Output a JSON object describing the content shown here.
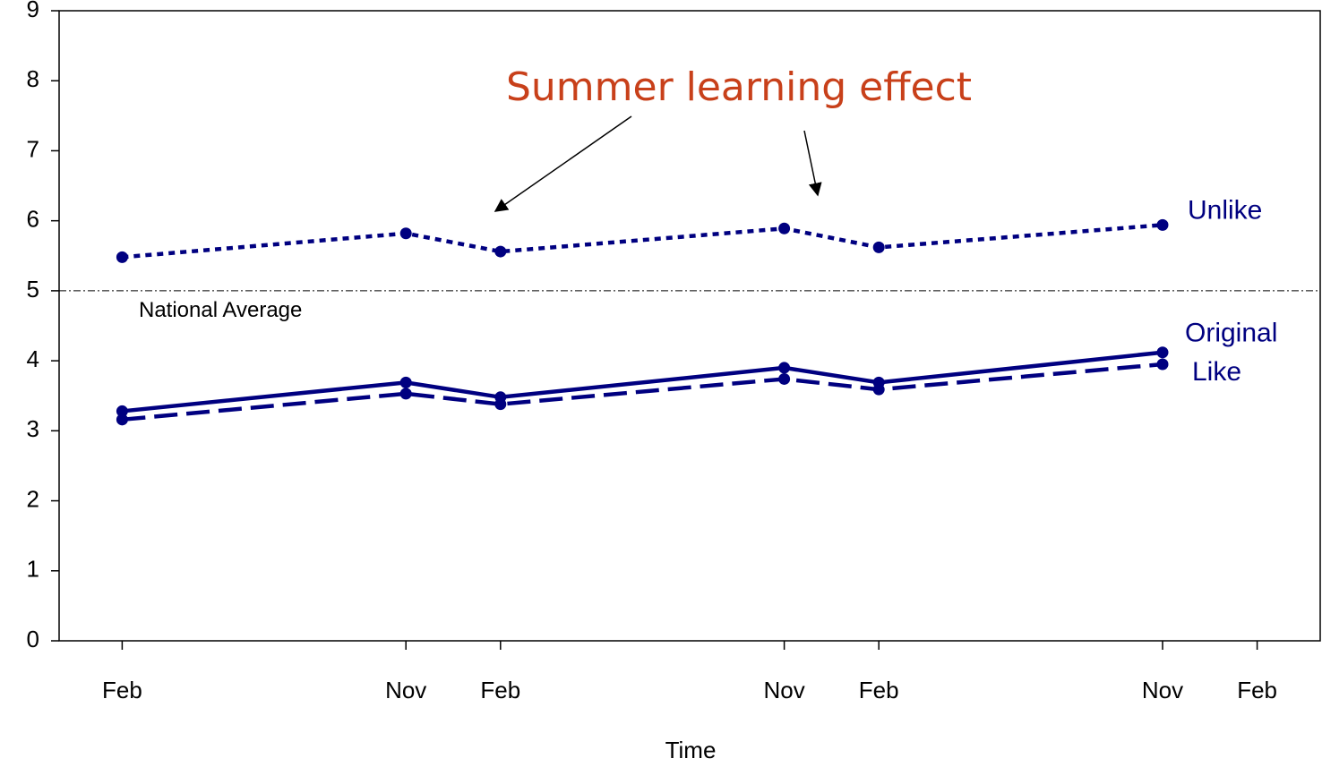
{
  "chart_data": {
    "type": "line",
    "x_label": "Time",
    "x": [
      0,
      9,
      12,
      21,
      24,
      33
    ],
    "xlim": [
      -2,
      38
    ],
    "xticks": [
      {
        "value": 0,
        "label": "Feb"
      },
      {
        "value": 9,
        "label": "Nov"
      },
      {
        "value": 12,
        "label": "Feb"
      },
      {
        "value": 21,
        "label": "Nov"
      },
      {
        "value": 24,
        "label": "Feb"
      },
      {
        "value": 33,
        "label": "Nov"
      },
      {
        "value": 36,
        "label": "Feb"
      }
    ],
    "ylim": [
      0,
      9
    ],
    "yticks": [
      0,
      1,
      2,
      3,
      4,
      5,
      6,
      7,
      8,
      9
    ],
    "series": [
      {
        "name": "Unlike",
        "color": "#000080",
        "line_style": "dotted",
        "values": [
          5.48,
          5.82,
          5.56,
          5.89,
          5.62,
          5.94
        ]
      },
      {
        "name": "Original",
        "color": "#000080",
        "line_style": "solid",
        "values": [
          3.28,
          3.69,
          3.48,
          3.9,
          3.69,
          4.12
        ]
      },
      {
        "name": "Like",
        "color": "#000080",
        "line_style": "dashed",
        "values": [
          3.16,
          3.53,
          3.38,
          3.74,
          3.59,
          3.95
        ]
      }
    ],
    "reference_line": {
      "value": 5,
      "label": "National Average"
    },
    "annotation": "Summer learning effect"
  }
}
